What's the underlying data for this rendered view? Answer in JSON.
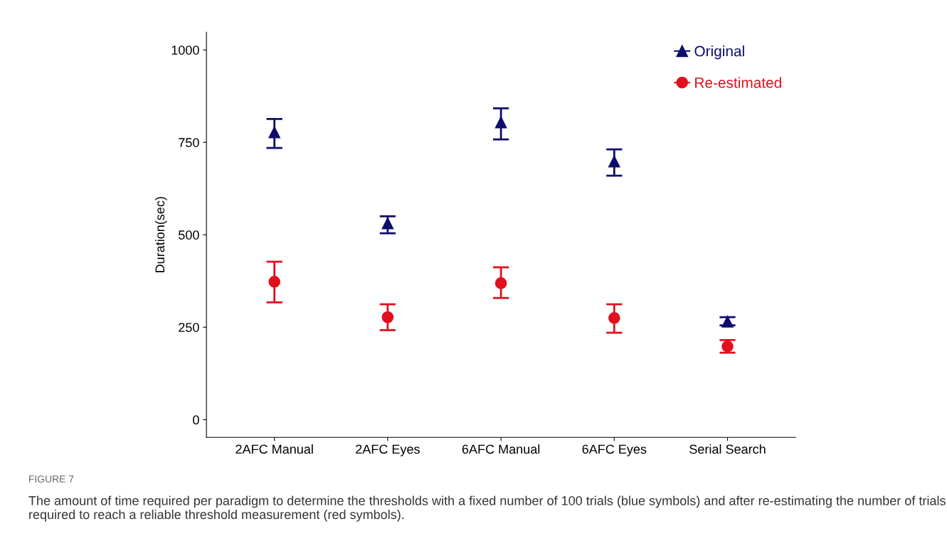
{
  "chart_data": {
    "type": "scatter",
    "ylabel": "Duration(sec)",
    "categories": [
      "2AFC Manual",
      "2AFC Eyes",
      "6AFC Manual",
      "6AFC Eyes",
      "Serial Search"
    ],
    "series": [
      {
        "name": "Original",
        "color": "#0d0d6b",
        "marker": "triangle",
        "values": [
          777,
          531,
          804,
          698,
          265
        ],
        "errors": [
          [
            735,
            813
          ],
          [
            504,
            550
          ],
          [
            758,
            842
          ],
          [
            660,
            731
          ],
          [
            255,
            277
          ]
        ]
      },
      {
        "name": "Re-estimated",
        "color": "#e0101e",
        "marker": "circle",
        "values": [
          373,
          277,
          369,
          275,
          198
        ],
        "errors": [
          [
            317,
            427
          ],
          [
            242,
            312
          ],
          [
            329,
            412
          ],
          [
            235,
            312
          ],
          [
            181,
            215
          ]
        ]
      }
    ],
    "ylim": [
      -48,
      1048
    ],
    "yticks": [
      0,
      250,
      500,
      750,
      1000
    ],
    "grid": false,
    "legend": "top right",
    "annotations": [
      "FIGURE 7",
      "The amount of time required per paradigm to determine the thresholds with a fixed number of 100 trials (blue symbols) and after re-estimating the number of trials required to reach a reliable threshold measurement (red symbols)."
    ]
  }
}
